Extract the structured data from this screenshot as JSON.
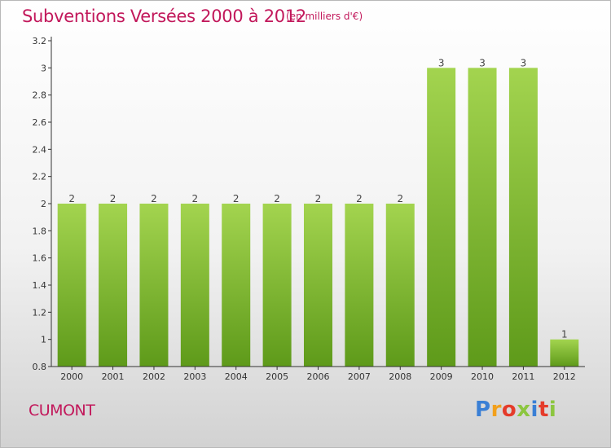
{
  "header": {
    "title": "Subventions Versées 2000 à 2012",
    "subtitle": "(en milliers d'€)"
  },
  "footer": {
    "commune": "CUMONT",
    "logo_text": "Proxiti",
    "logo_colors": [
      "#3a7fd5",
      "#f2a01c",
      "#e53b2a",
      "#8cc63f",
      "#3a7fd5",
      "#e53b2a",
      "#8cc63f"
    ]
  },
  "colors": {
    "title": "#c2185b",
    "bar_top": "#a3d44f",
    "bar_bottom": "#5e9a1a",
    "axis": "#333333"
  },
  "chart_data": {
    "type": "bar",
    "title": "Subventions Versées 2000 à 2012",
    "subtitle": "(en milliers d'€)",
    "xlabel": "",
    "ylabel": "",
    "categories": [
      "2000",
      "2001",
      "2002",
      "2003",
      "2004",
      "2005",
      "2006",
      "2007",
      "2008",
      "2009",
      "2010",
      "2011",
      "2012"
    ],
    "values": [
      2,
      2,
      2,
      2,
      2,
      2,
      2,
      2,
      2,
      3,
      3,
      3,
      1
    ],
    "data_labels": [
      "2",
      "2",
      "2",
      "2",
      "2",
      "2",
      "2",
      "2",
      "2",
      "3",
      "3",
      "3",
      "1"
    ],
    "ylim": [
      0.8,
      3.2
    ],
    "yticks": [
      "0.8",
      "1",
      "1.2",
      "1.4",
      "1.6",
      "1.8",
      "2",
      "2.2",
      "2.4",
      "2.6",
      "2.8",
      "3",
      "3.2"
    ],
    "grid": false,
    "legend": "none"
  }
}
